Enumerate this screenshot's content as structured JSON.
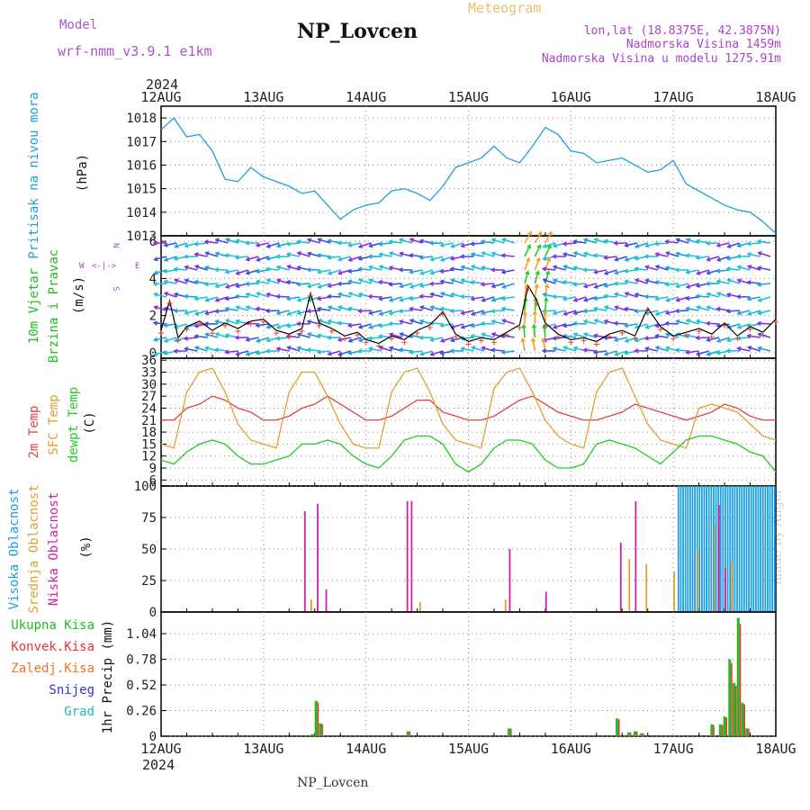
{
  "header": {
    "model_label": "Model",
    "model_name": "wrf-nmm_v3.9.1  e1km",
    "station": "NP_Lovcen",
    "chart_title": "Meteogram",
    "coords": "lon,lat (18.8375E, 42.3875N)",
    "altitude": "Nadmorska Visina 1459m",
    "model_altitude": "Nadmorska Visina u modelu 1275.91m",
    "footer_station": "NP_Lovcen",
    "watermark": "made by Angel"
  },
  "colors": {
    "pressure": "#1ea0e0",
    "temp2m": "#e04545",
    "sfc_temp": "#e0a030",
    "dewpt": "#22cc22",
    "high_cloud": "#1ea0e0",
    "mid_cloud": "#e0a030",
    "low_cloud": "#cc22aa",
    "total_precip": "#22bb22",
    "conv_precip": "#ee3333",
    "frozen_precip": "#ee7722",
    "snow": "#3333dd",
    "hail": "#22bbbb",
    "wind_label": "#22bb22",
    "wind_compass": "#aa44cc",
    "grid": "#888888"
  },
  "chart_data": {
    "type": "line",
    "year": "2024",
    "x_tick_labels": [
      "12AUG",
      "13AUG",
      "14AUG",
      "15AUG",
      "16AUG",
      "17AUG",
      "18AUG"
    ],
    "x_range_hours": [
      0,
      144
    ],
    "panels": [
      {
        "id": "pressure",
        "type": "line",
        "ylabel_lines": [
          "Pritisak na nivou mora"
        ],
        "unit": "(hPa)",
        "ylim": [
          1013,
          1018.5
        ],
        "yticks": [
          1013,
          1014,
          1015,
          1016,
          1017,
          1018
        ],
        "series": [
          {
            "color_key": "pressure",
            "x": [
              0,
              3,
              6,
              9,
              12,
              15,
              18,
              21,
              24,
              27,
              30,
              33,
              36,
              39,
              42,
              45,
              48,
              51,
              54,
              57,
              60,
              63,
              66,
              69,
              72,
              75,
              78,
              81,
              84,
              87,
              90,
              93,
              96,
              99,
              102,
              105,
              108,
              111,
              114,
              117,
              120,
              123,
              126,
              129,
              132,
              135,
              138,
              141,
              144
            ],
            "y": [
              1017.5,
              1018.0,
              1017.2,
              1017.3,
              1016.6,
              1015.4,
              1015.3,
              1015.9,
              1015.5,
              1015.3,
              1015.1,
              1014.8,
              1014.9,
              1014.3,
              1013.7,
              1014.1,
              1014.3,
              1014.4,
              1014.9,
              1015.0,
              1014.8,
              1014.5,
              1015.1,
              1015.9,
              1016.1,
              1016.3,
              1016.8,
              1016.3,
              1016.1,
              1016.8,
              1017.6,
              1017.3,
              1016.6,
              1016.5,
              1016.1,
              1016.2,
              1016.3,
              1016.0,
              1015.7,
              1015.8,
              1016.2,
              1015.2,
              1014.9,
              1014.6,
              1014.3,
              1014.1,
              1014.0,
              1013.6,
              1013.1
            ]
          }
        ]
      },
      {
        "id": "wind",
        "type": "line",
        "ylabel_lines": [
          "10m Vjetar",
          "Brzina i Pravac"
        ],
        "unit": "(m/s)",
        "compass": {
          "west": "W",
          "east": "E",
          "north": "N",
          "south": "S"
        },
        "ylim": [
          -0.3,
          6.3
        ],
        "yticks": [
          0,
          2,
          4,
          6
        ],
        "series": [
          {
            "name": "wind speed",
            "x": [
              0,
              2,
              4,
              6,
              9,
              12,
              15,
              18,
              21,
              24,
              27,
              30,
              33,
              35,
              37,
              40,
              43,
              46,
              48,
              51,
              54,
              57,
              60,
              63,
              66,
              69,
              72,
              75,
              78,
              81,
              84,
              86,
              88,
              90,
              93,
              96,
              99,
              102,
              105,
              108,
              111,
              114,
              117,
              120,
              123,
              126,
              129,
              132,
              135,
              138,
              141,
              144
            ],
            "y": [
              1.2,
              2.8,
              0.8,
              1.4,
              1.7,
              1.2,
              1.6,
              1.3,
              1.7,
              1.8,
              1.2,
              1.0,
              1.3,
              3.2,
              1.6,
              1.3,
              0.9,
              1.1,
              0.7,
              0.5,
              0.9,
              0.7,
              1.2,
              1.5,
              2.2,
              1.0,
              0.6,
              0.8,
              0.7,
              1.1,
              1.5,
              3.6,
              2.8,
              1.6,
              1.0,
              0.7,
              0.8,
              0.6,
              1.0,
              1.2,
              0.9,
              2.4,
              1.4,
              0.9,
              1.1,
              1.3,
              1.0,
              1.6,
              0.9,
              1.4,
              1.1,
              1.8
            ]
          }
        ]
      },
      {
        "id": "temperature",
        "type": "line",
        "ylabel_lines": [
          "2m Temp",
          "SFC Temp",
          "dewpt Temp"
        ],
        "unit": "(C)",
        "ylim": [
          4.5,
          36.5
        ],
        "yticks": [
          6,
          9,
          12,
          15,
          18,
          21,
          24,
          27,
          30,
          33,
          36
        ],
        "series": [
          {
            "name": "2m Temp",
            "color_key": "temp2m",
            "x": [
              0,
              3,
              6,
              9,
              12,
              15,
              18,
              21,
              24,
              27,
              30,
              33,
              36,
              39,
              42,
              45,
              48,
              51,
              54,
              57,
              60,
              63,
              66,
              69,
              72,
              75,
              78,
              81,
              84,
              87,
              90,
              93,
              96,
              99,
              102,
              105,
              108,
              111,
              114,
              117,
              120,
              123,
              126,
              129,
              132,
              135,
              138,
              141,
              144
            ],
            "y": [
              21,
              21,
              24,
              25,
              27,
              26,
              24,
              23,
              21,
              21,
              22,
              24,
              25,
              27,
              25,
              23,
              21,
              21,
              22,
              24,
              26,
              26,
              23,
              22,
              21,
              21,
              22,
              24,
              26,
              27,
              25,
              23,
              22,
              21,
              21,
              22,
              23,
              25,
              24,
              23,
              22,
              21,
              22,
              23,
              25,
              24,
              22,
              21,
              21
            ]
          },
          {
            "name": "SFC Temp",
            "color_key": "sfc_temp",
            "x": [
              0,
              3,
              6,
              9,
              12,
              15,
              18,
              21,
              24,
              27,
              30,
              33,
              36,
              39,
              42,
              45,
              48,
              51,
              54,
              57,
              60,
              63,
              66,
              69,
              72,
              75,
              78,
              81,
              84,
              87,
              90,
              93,
              96,
              99,
              102,
              105,
              108,
              111,
              114,
              117,
              120,
              123,
              126,
              129,
              132,
              135,
              138,
              141,
              144
            ],
            "y": [
              15,
              14,
              28,
              33,
              34,
              28,
              20,
              16,
              15,
              14,
              28,
              33,
              33,
              27,
              20,
              15,
              14,
              14,
              28,
              33,
              34,
              28,
              20,
              16,
              15,
              14,
              29,
              33,
              34,
              28,
              21,
              17,
              15,
              14,
              28,
              33,
              34,
              27,
              20,
              16,
              15,
              14,
              24,
              25,
              24,
              23,
              20,
              17,
              16
            ]
          },
          {
            "name": "dewpt Temp",
            "color_key": "dewpt",
            "x": [
              0,
              3,
              6,
              9,
              12,
              15,
              18,
              21,
              24,
              27,
              30,
              33,
              36,
              39,
              42,
              45,
              48,
              51,
              54,
              57,
              60,
              63,
              66,
              69,
              72,
              75,
              78,
              81,
              84,
              87,
              90,
              93,
              96,
              99,
              102,
              105,
              108,
              111,
              114,
              117,
              120,
              123,
              126,
              129,
              132,
              135,
              138,
              141,
              144
            ],
            "y": [
              11,
              10,
              13,
              15,
              16,
              15,
              12,
              10,
              10,
              11,
              12,
              15,
              15,
              16,
              15,
              12,
              10,
              9,
              12,
              16,
              17,
              17,
              15,
              10,
              8,
              10,
              14,
              16,
              16,
              15,
              11,
              9,
              9,
              10,
              15,
              16,
              15,
              14,
              12,
              10,
              13,
              16,
              17,
              17,
              16,
              15,
              13,
              12,
              8
            ]
          }
        ]
      },
      {
        "id": "clouds",
        "type": "bar",
        "ylabel_lines": [
          "Visoka Oblacnost",
          "Srednja Oblacnost",
          "Niska Oblacnost"
        ],
        "unit": "(%)",
        "ylim": [
          0,
          100
        ],
        "yticks": [
          0,
          25,
          50,
          75,
          100
        ],
        "bars": [
          {
            "x": 33.5,
            "value": 80,
            "color_key": "low_cloud"
          },
          {
            "x": 35,
            "value": 10,
            "color_key": "mid_cloud"
          },
          {
            "x": 36.5,
            "value": 86,
            "color_key": "low_cloud"
          },
          {
            "x": 38.5,
            "value": 18,
            "color_key": "low_cloud"
          },
          {
            "x": 57.5,
            "value": 88,
            "color_key": "low_cloud"
          },
          {
            "x": 58.5,
            "value": 88,
            "color_key": "low_cloud"
          },
          {
            "x": 60.5,
            "value": 8,
            "color_key": "mid_cloud"
          },
          {
            "x": 81.5,
            "value": 50,
            "color_key": "low_cloud"
          },
          {
            "x": 80.5,
            "value": 10,
            "color_key": "mid_cloud"
          },
          {
            "x": 90,
            "value": 16,
            "color_key": "low_cloud"
          },
          {
            "x": 107.5,
            "value": 55,
            "color_key": "low_cloud"
          },
          {
            "x": 109.5,
            "value": 42,
            "color_key": "mid_cloud"
          },
          {
            "x": 111,
            "value": 88,
            "color_key": "low_cloud"
          },
          {
            "x": 113.5,
            "value": 38,
            "color_key": "mid_cloud"
          },
          {
            "x": 120,
            "value": 32,
            "color_key": "mid_cloud"
          },
          {
            "x": 125.5,
            "value": 50,
            "color_key": "mid_cloud"
          },
          {
            "x": 129.5,
            "value": 70,
            "color_key": "mid_cloud"
          },
          {
            "x": 130.5,
            "value": 85,
            "color_key": "low_cloud"
          },
          {
            "x": 132,
            "value": 35,
            "color_key": "low_cloud"
          },
          {
            "x": 133.5,
            "value": 40,
            "color_key": "mid_cloud"
          }
        ],
        "high_cloud_block": {
          "x_start": 121,
          "x_end": 144,
          "value": 100
        }
      },
      {
        "id": "precip",
        "type": "bar",
        "ylabel_lines": [
          "1hr Precip"
        ],
        "unit": "(mm)",
        "ylim": [
          0,
          1.26
        ],
        "yticks": [
          0,
          0.26,
          0.52,
          0.78,
          1.04
        ],
        "legend": [
          {
            "label": "Ukupna Kisa",
            "color_key": "total_precip"
          },
          {
            "label": "Konvek.Kisa",
            "color_key": "conv_precip"
          },
          {
            "label": "Zaledj.Kisa",
            "color_key": "frozen_precip"
          },
          {
            "label": "Snijeg",
            "color_key": "snow"
          },
          {
            "label": "Grad",
            "color_key": "hail"
          }
        ],
        "bars": [
          {
            "x": 36.3,
            "value": 0.36,
            "color_key": "total_precip"
          },
          {
            "x": 37.3,
            "value": 0.13,
            "color_key": "total_precip"
          },
          {
            "x": 35.3,
            "value": 0.02,
            "color_key": "total_precip"
          },
          {
            "x": 57.8,
            "value": 0.05,
            "color_key": "total_precip"
          },
          {
            "x": 81.5,
            "value": 0.08,
            "color_key": "total_precip"
          },
          {
            "x": 106.8,
            "value": 0.18,
            "color_key": "total_precip"
          },
          {
            "x": 109.5,
            "value": 0.04,
            "color_key": "total_precip"
          },
          {
            "x": 111,
            "value": 0.05,
            "color_key": "total_precip"
          },
          {
            "x": 112.5,
            "value": 0.03,
            "color_key": "total_precip"
          },
          {
            "x": 129,
            "value": 0.12,
            "color_key": "total_precip"
          },
          {
            "x": 131,
            "value": 0.12,
            "color_key": "total_precip"
          },
          {
            "x": 132,
            "value": 0.2,
            "color_key": "total_precip"
          },
          {
            "x": 133.2,
            "value": 0.78,
            "color_key": "total_precip"
          },
          {
            "x": 134.2,
            "value": 0.54,
            "color_key": "total_precip"
          },
          {
            "x": 135.2,
            "value": 1.2,
            "color_key": "total_precip"
          },
          {
            "x": 136.2,
            "value": 0.34,
            "color_key": "total_precip"
          },
          {
            "x": 137.2,
            "value": 0.08,
            "color_key": "total_precip"
          }
        ]
      }
    ]
  }
}
